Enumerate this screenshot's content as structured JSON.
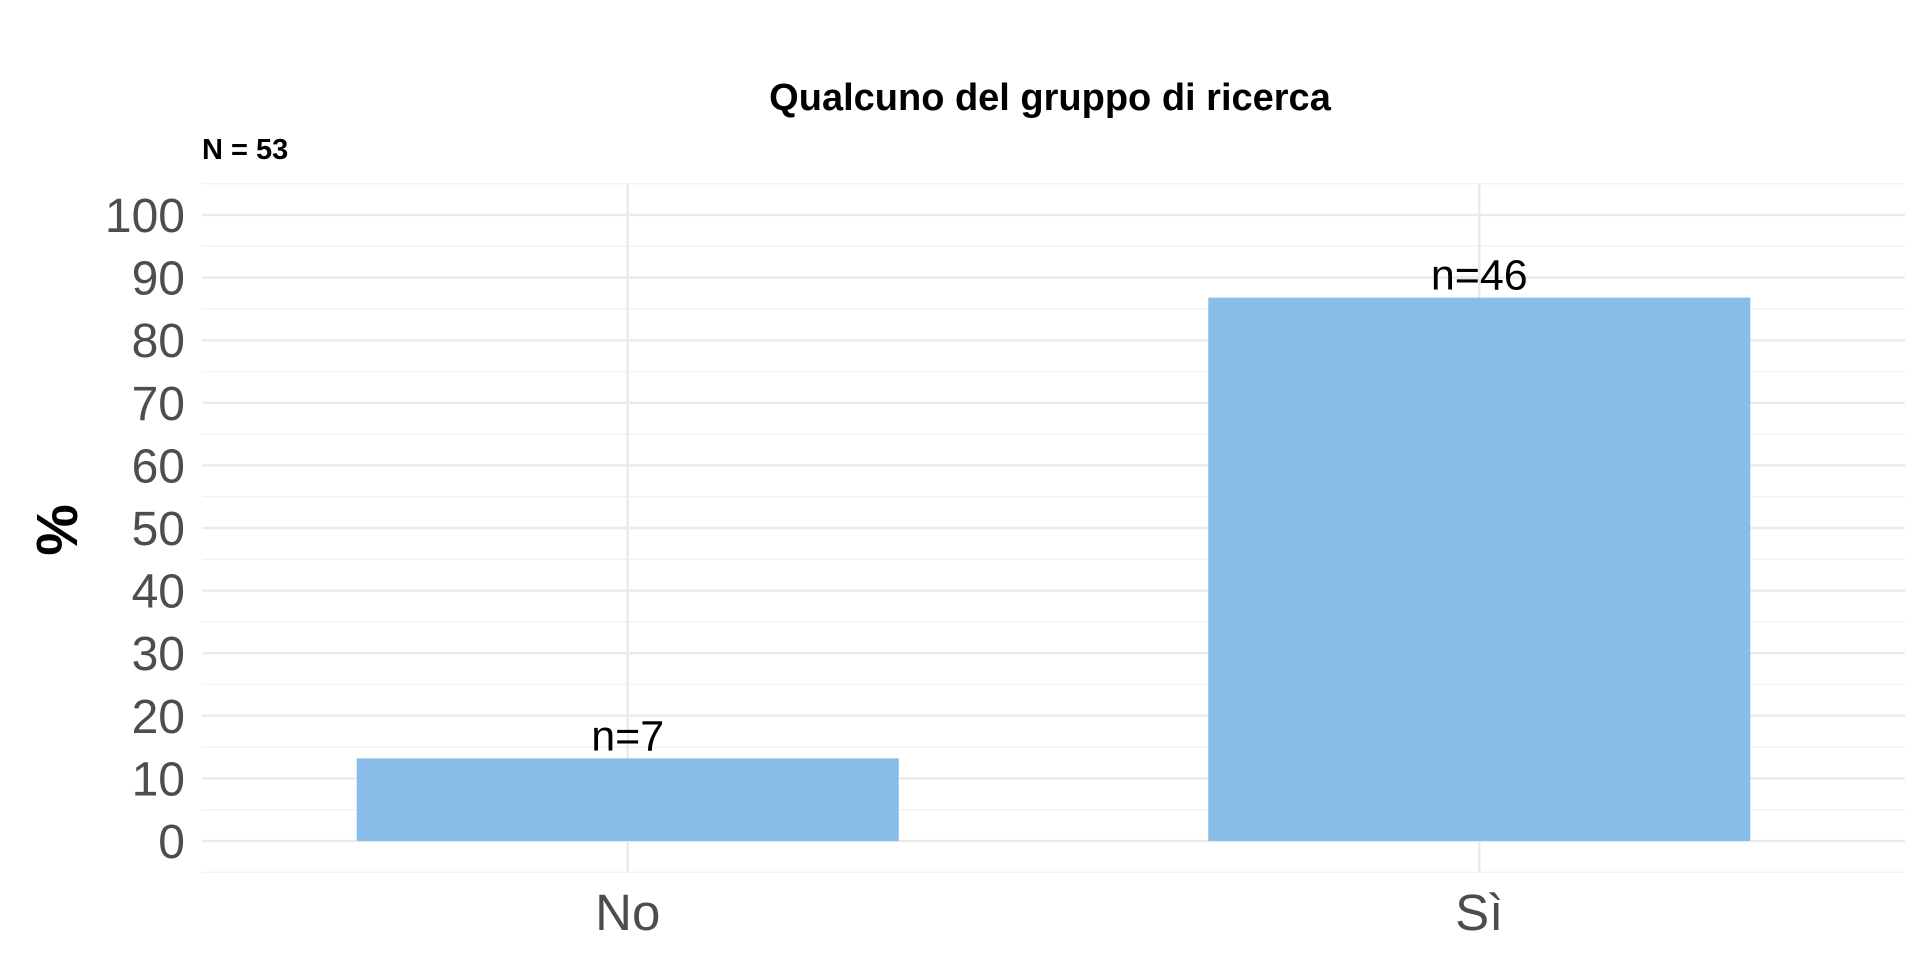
{
  "chart_data": {
    "type": "bar",
    "title": "Qualcuno del gruppo di ricerca",
    "subtitle": "N = 53",
    "xlabel": "",
    "ylabel": "%",
    "categories": [
      "No",
      "Sì"
    ],
    "values": [
      13.2,
      86.8
    ],
    "data_labels": [
      "n=7",
      "n=46"
    ],
    "ylim": [
      0,
      100
    ],
    "yticks": [
      0,
      10,
      20,
      30,
      40,
      50,
      60,
      70,
      80,
      90,
      100
    ],
    "grid": true,
    "legend": "none",
    "bar_color": "#89bde9"
  }
}
